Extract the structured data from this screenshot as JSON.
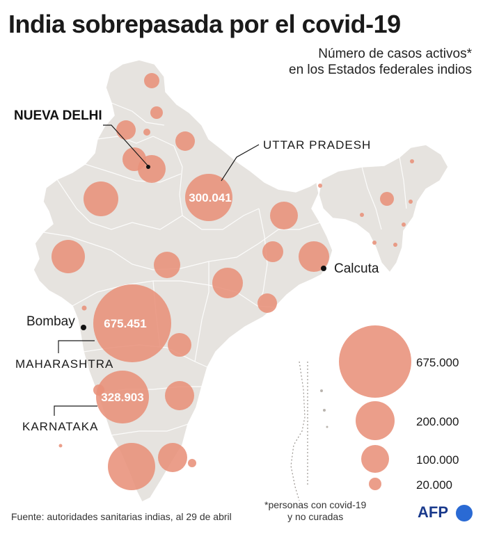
{
  "title": "India sobrepasada por el covid-19",
  "subtitle": {
    "line1": "Número de casos activos*",
    "line2": "en los Estados federales indios"
  },
  "colors": {
    "bubble": "#e8917a",
    "land": "#e6e3df",
    "border": "#ffffff",
    "text": "#1a1a1a"
  },
  "places": {
    "nueva_delhi": "NUEVA DELHI",
    "uttar_pradesh": "UTTAR PRADESH",
    "calcuta": "Calcuta",
    "bombay": "Bombay",
    "maharashtra": "MAHARASHTRA",
    "karnataka": "KARNATAKA"
  },
  "bubble_values": {
    "maharashtra": "675.451",
    "karnataka": "328.903",
    "uttar_pradesh": "300.041"
  },
  "legend": {
    "items": [
      "675.000",
      "200.000",
      "100.000",
      "20.000"
    ],
    "values": [
      675000,
      200000,
      100000,
      20000
    ]
  },
  "footnote": {
    "line1": "*personas con covid-19",
    "line2": "y no curadas"
  },
  "source": "Fuente: autoridades sanitarias indias, al 29 de abril",
  "credit": "AFP"
}
